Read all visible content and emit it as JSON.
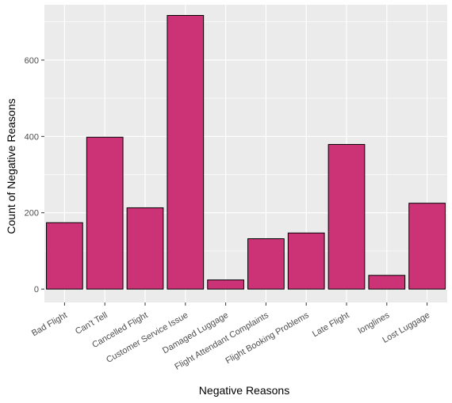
{
  "chart_data": {
    "type": "bar",
    "title": "",
    "xlabel": "Negative Reasons",
    "ylabel": "Count of Negative Reasons",
    "categories": [
      "Bad Flight",
      "Can't Tell",
      "Cancelled Flight",
      "Customer Service Issue",
      "Damaged Luggage",
      "Flight Attendant Complaints",
      "Flight Booking Problems",
      "Late Flight",
      "longlines",
      "Lost Luggage"
    ],
    "values": [
      174,
      398,
      213,
      717,
      24,
      132,
      147,
      379,
      36,
      225
    ],
    "ylim": [
      -35,
      745
    ],
    "yticks": [
      0,
      200,
      400,
      600
    ],
    "grid": true,
    "legend": "none",
    "colors": {
      "bar_fill": "#cc3377",
      "bar_stroke": "#000000",
      "panel": "#ebebeb",
      "grid": "#ffffff",
      "tick_text": "#4d4d4d"
    }
  }
}
